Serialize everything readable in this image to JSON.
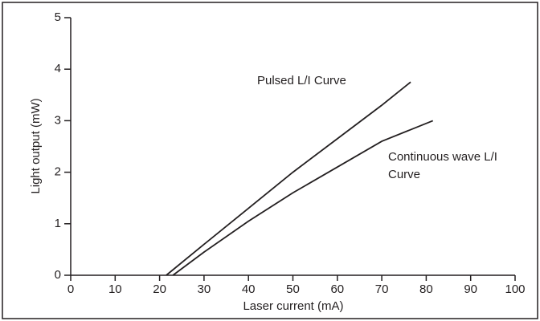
{
  "chart_data": {
    "type": "line",
    "xlabel": "Laser current (mA)",
    "ylabel": "Light output (mW)",
    "series": [
      {
        "name": "Pulsed L/I Curve",
        "color": "#231f20",
        "x": [
          21.5,
          30,
          40,
          50,
          60,
          70,
          76.5
        ],
        "values": [
          0,
          0.6,
          1.3,
          2.0,
          2.65,
          3.3,
          3.75
        ]
      },
      {
        "name": "Continuous wave L/I Curve",
        "color": "#231f20",
        "x": [
          23,
          30,
          40,
          50,
          60,
          70,
          81.5
        ],
        "values": [
          0,
          0.45,
          1.05,
          1.6,
          2.1,
          2.6,
          3.0
        ]
      }
    ],
    "xlim": [
      0,
      100
    ],
    "xticks": [
      0,
      10,
      20,
      30,
      40,
      50,
      60,
      70,
      80,
      90,
      100
    ],
    "ylim": [
      0,
      5
    ],
    "yticks": [
      0,
      1,
      2,
      3,
      4,
      5
    ],
    "grid": false
  }
}
